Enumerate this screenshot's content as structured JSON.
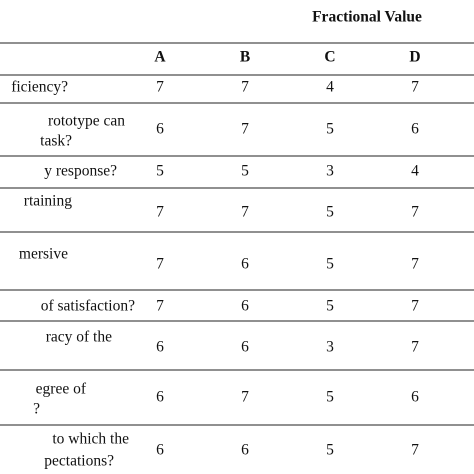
{
  "header": {
    "title": "Fractional Value",
    "columns": [
      "A",
      "B",
      "C",
      "D"
    ]
  },
  "table": {
    "rows": [
      {
        "label": [
          "ficiency?"
        ],
        "values": [
          7,
          7,
          4,
          7
        ]
      },
      {
        "label": [
          "rototype can",
          "task?"
        ],
        "values": [
          6,
          7,
          5,
          6
        ]
      },
      {
        "label": [
          "y response?"
        ],
        "values": [
          5,
          5,
          3,
          4
        ]
      },
      {
        "label": [
          "rtaining"
        ],
        "values": [
          7,
          7,
          5,
          7
        ]
      },
      {
        "label": [
          "mersive"
        ],
        "values": [
          7,
          6,
          5,
          7
        ]
      },
      {
        "label": [
          "of satisfaction?"
        ],
        "values": [
          7,
          6,
          5,
          7
        ]
      },
      {
        "label": [
          "racy of the"
        ],
        "values": [
          6,
          6,
          3,
          7
        ]
      },
      {
        "label": [
          "egree of",
          "?"
        ],
        "values": [
          6,
          7,
          5,
          6
        ]
      },
      {
        "label": [
          "to which the",
          "pectations?"
        ],
        "values": [
          6,
          6,
          5,
          7
        ]
      }
    ]
  }
}
